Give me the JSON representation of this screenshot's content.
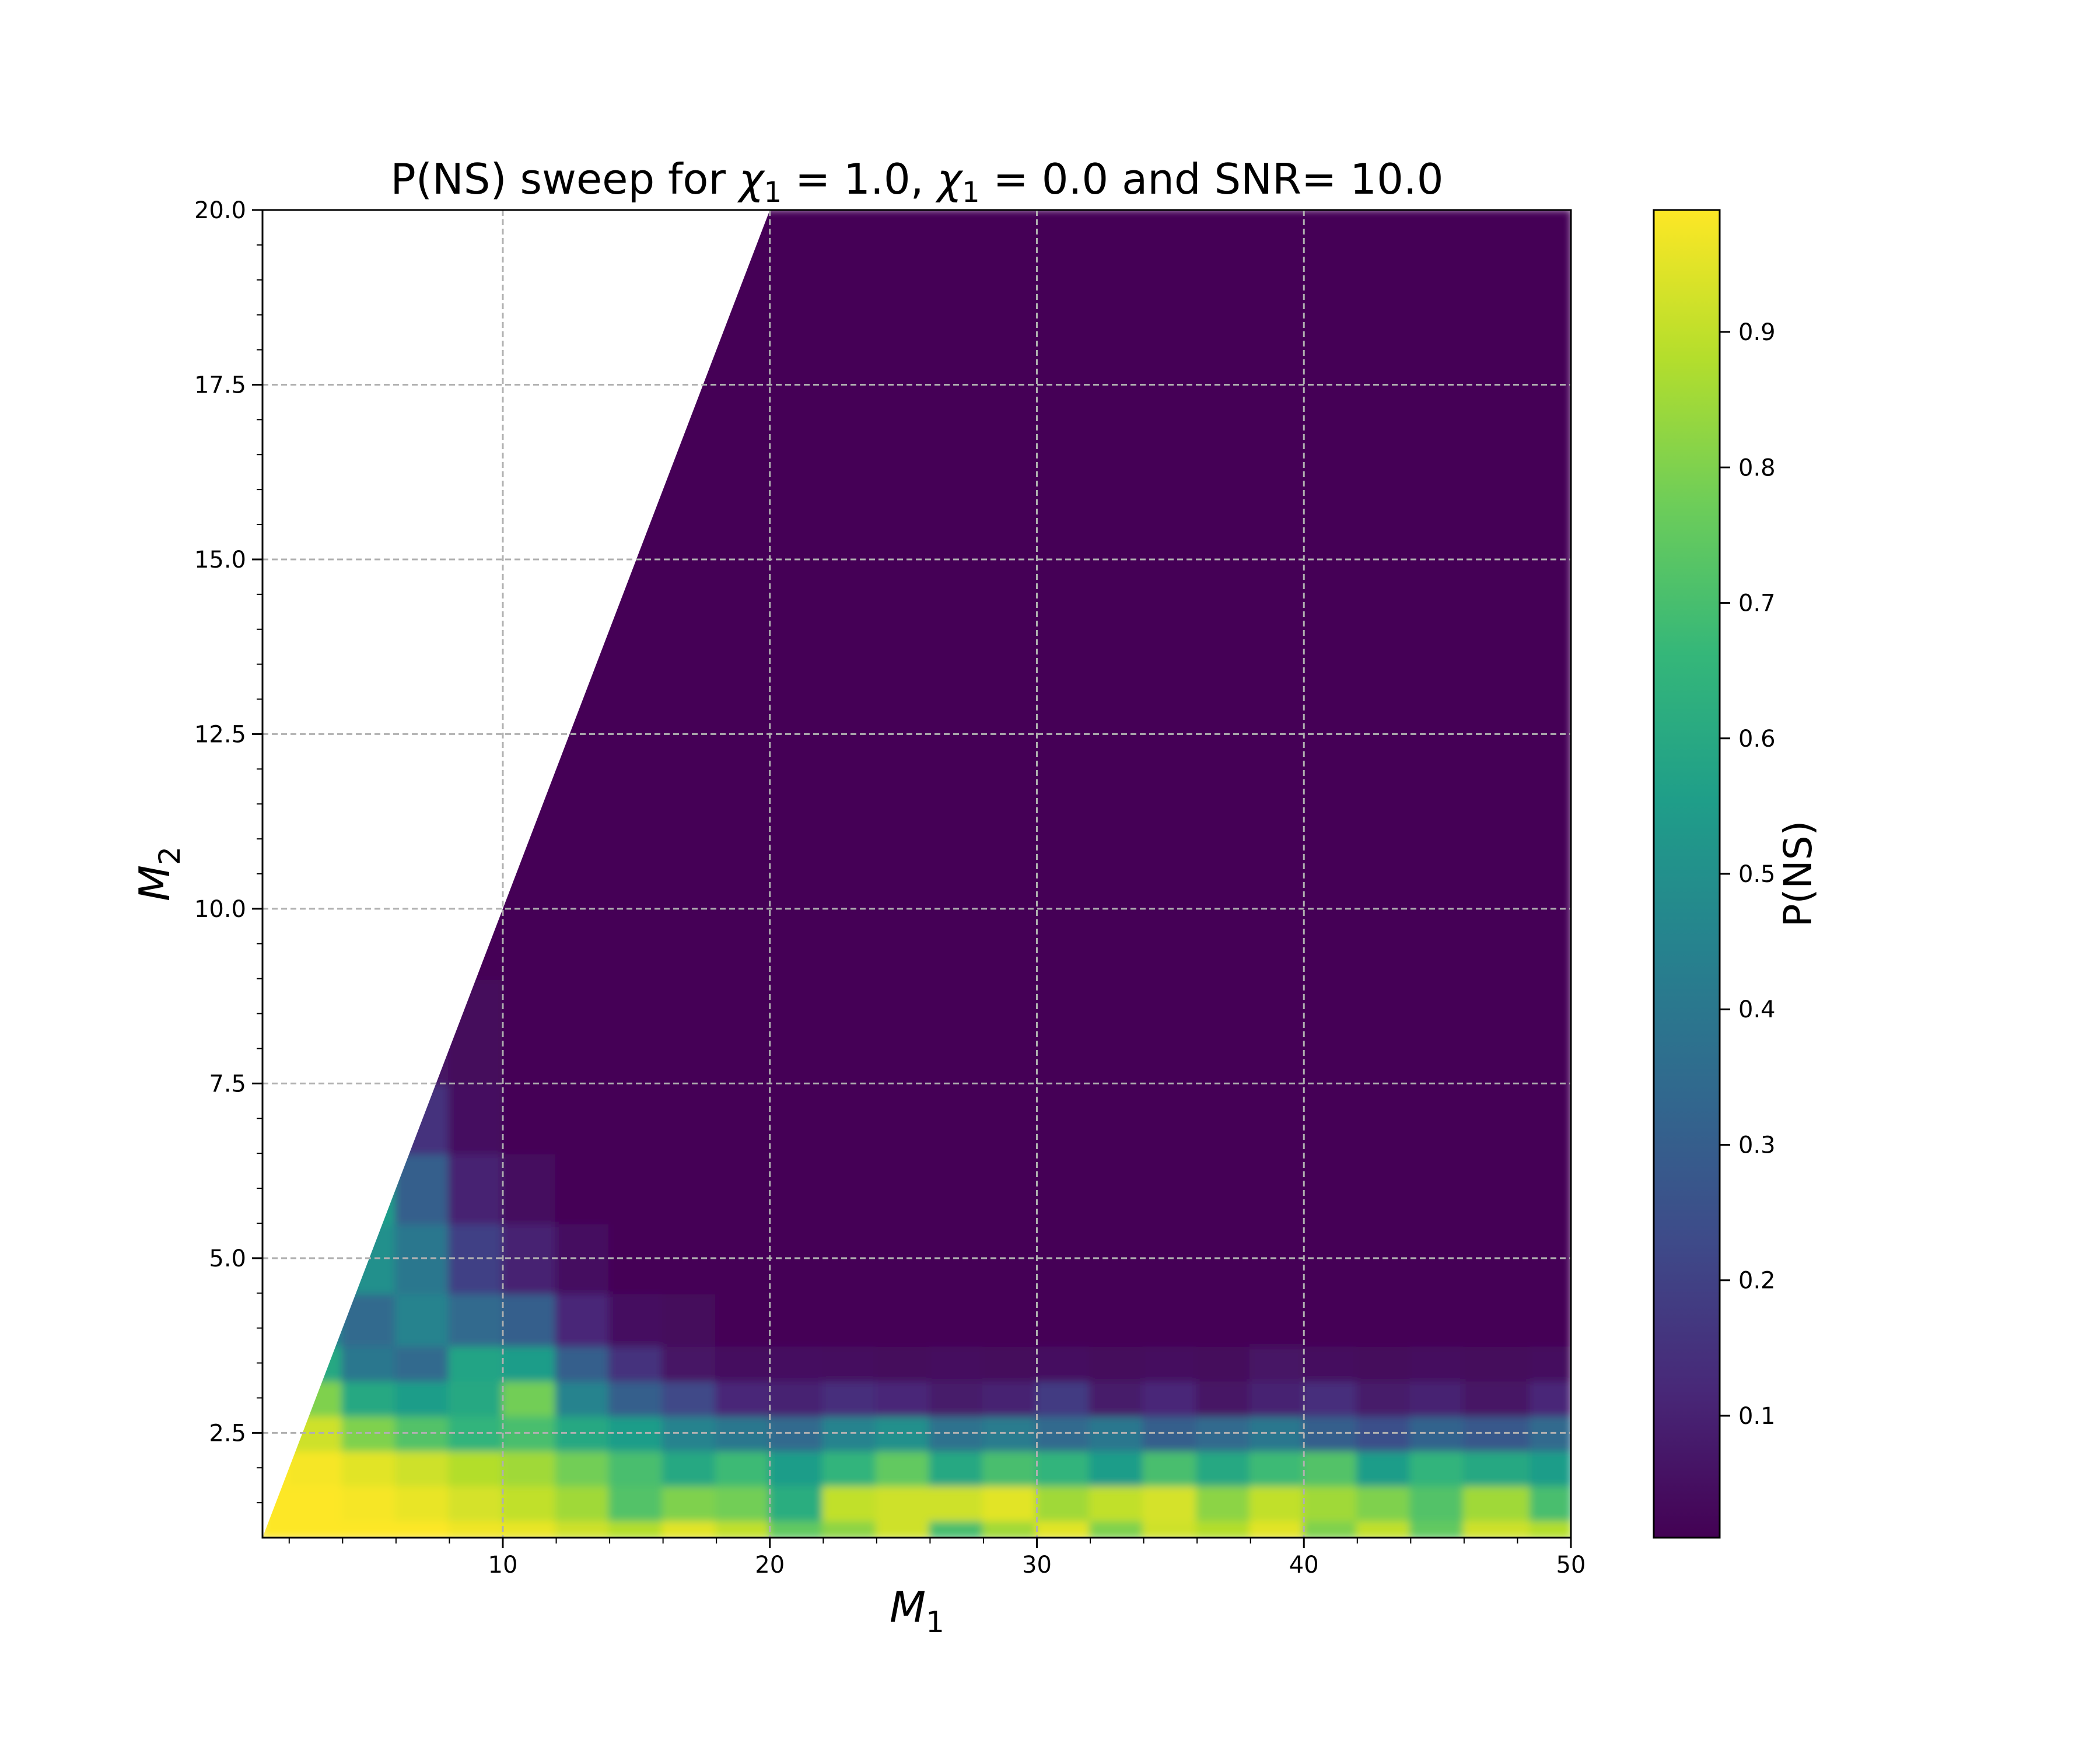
{
  "chart_data": {
    "type": "heatmap",
    "title": "P(NS) sweep for χ₁ = 1.0, χ₁ = 0.0 and SNR= 10.0",
    "title_parts": [
      "P(NS) sweep for ",
      "χ",
      "1",
      " = 1.0, ",
      "χ",
      "1",
      " = 0.0 and SNR= 10.0"
    ],
    "xlabel": "M",
    "xlabel_sub": "1",
    "ylabel": "M",
    "ylabel_sub": "2",
    "xlim": [
      1,
      50
    ],
    "ylim": [
      1,
      20
    ],
    "xticks": [
      10,
      20,
      30,
      40,
      50
    ],
    "xtick_labels": [
      "10",
      "20",
      "30",
      "40",
      "50"
    ],
    "yticks": [
      2.5,
      5.0,
      7.5,
      10.0,
      12.5,
      15.0,
      17.5,
      20.0
    ],
    "ytick_labels": [
      "2.5",
      "5.0",
      "7.5",
      "10.0",
      "12.5",
      "15.0",
      "17.5",
      "20.0"
    ],
    "grid": true,
    "colormap": "viridis",
    "colorbar": {
      "label": "P(NS)",
      "range": [
        0.01,
        0.99
      ],
      "ticks": [
        0.1,
        0.2,
        0.3,
        0.4,
        0.5,
        0.6,
        0.7,
        0.8,
        0.9
      ],
      "tick_labels": [
        "0.1",
        "0.2",
        "0.3",
        "0.4",
        "0.5",
        "0.6",
        "0.7",
        "0.8",
        "0.9"
      ]
    },
    "domain_constraint": "M2 <= M1",
    "m1_grid": [
      1,
      3,
      5,
      7,
      9,
      11,
      13,
      15,
      17,
      19,
      21,
      23,
      25,
      27,
      29,
      31,
      33,
      35,
      37,
      39,
      41,
      43,
      45,
      47,
      50
    ],
    "m2_grid": [
      1,
      1.5,
      2,
      2.5,
      3,
      3.5,
      4,
      5,
      6,
      7,
      8,
      10,
      12.5,
      15,
      17.5,
      20
    ],
    "pns_rows": [
      [
        0.99,
        0.99,
        0.99,
        0.99,
        0.97,
        0.96,
        0.92,
        0.88,
        0.95,
        0.9,
        0.75,
        0.82,
        0.92,
        0.7,
        0.85,
        0.95,
        0.8,
        0.92,
        0.88,
        0.95,
        0.8,
        0.9,
        0.75,
        0.92,
        0.88
      ],
      [
        0.99,
        0.99,
        0.98,
        0.96,
        0.93,
        0.9,
        0.85,
        0.72,
        0.8,
        0.78,
        0.62,
        0.9,
        0.92,
        0.92,
        0.95,
        0.85,
        0.9,
        0.93,
        0.82,
        0.9,
        0.85,
        0.8,
        0.72,
        0.85,
        0.7
      ],
      [
        0.99,
        0.98,
        0.95,
        0.92,
        0.88,
        0.85,
        0.78,
        0.7,
        0.6,
        0.68,
        0.55,
        0.65,
        0.75,
        0.6,
        0.7,
        0.65,
        0.55,
        0.7,
        0.6,
        0.68,
        0.72,
        0.55,
        0.65,
        0.6,
        0.55
      ],
      [
        0.98,
        0.92,
        0.8,
        0.72,
        0.65,
        0.7,
        0.6,
        0.55,
        0.45,
        0.4,
        0.35,
        0.45,
        0.5,
        0.38,
        0.42,
        0.35,
        0.4,
        0.3,
        0.35,
        0.4,
        0.3,
        0.25,
        0.32,
        0.28,
        0.35
      ],
      [
        0.92,
        0.8,
        0.6,
        0.55,
        0.6,
        0.78,
        0.45,
        0.3,
        0.22,
        0.12,
        0.1,
        0.14,
        0.12,
        0.08,
        0.1,
        0.18,
        0.08,
        0.12,
        0.06,
        0.1,
        0.14,
        0.08,
        0.1,
        0.06,
        0.12
      ],
      [
        0.8,
        0.6,
        0.4,
        0.35,
        0.58,
        0.55,
        0.3,
        0.15,
        0.06,
        0.04,
        0.05,
        0.04,
        0.03,
        0.04,
        0.03,
        0.05,
        0.03,
        0.04,
        0.03,
        0.06,
        0.04,
        0.03,
        0.04,
        0.03,
        0.04
      ],
      [
        0.6,
        0.45,
        0.35,
        0.45,
        0.35,
        0.3,
        0.12,
        0.05,
        0.03,
        0.02,
        0.02,
        0.02,
        0.02,
        0.02,
        0.02,
        0.02,
        0.02,
        0.02,
        0.02,
        0.02,
        0.02,
        0.02,
        0.02,
        0.02,
        0.02
      ],
      [
        0.45,
        0.45,
        0.5,
        0.4,
        0.2,
        0.1,
        0.05,
        0.02,
        0.02,
        0.02,
        0.02,
        0.02,
        0.02,
        0.02,
        0.02,
        0.02,
        0.02,
        0.02,
        0.02,
        0.02,
        0.02,
        0.02,
        0.02,
        0.02,
        0.02
      ],
      [
        0.4,
        0.45,
        0.55,
        0.3,
        0.1,
        0.04,
        0.02,
        0.02,
        0.02,
        0.02,
        0.02,
        0.02,
        0.02,
        0.02,
        0.02,
        0.02,
        0.02,
        0.02,
        0.02,
        0.02,
        0.02,
        0.02,
        0.02,
        0.02,
        0.02
      ],
      [
        0.3,
        0.35,
        0.3,
        0.15,
        0.05,
        0.02,
        0.02,
        0.02,
        0.02,
        0.02,
        0.02,
        0.02,
        0.02,
        0.02,
        0.02,
        0.02,
        0.02,
        0.02,
        0.02,
        0.02,
        0.02,
        0.02,
        0.02,
        0.02,
        0.02
      ],
      [
        0.2,
        0.2,
        0.12,
        0.06,
        0.03,
        0.02,
        0.02,
        0.02,
        0.02,
        0.02,
        0.02,
        0.02,
        0.02,
        0.02,
        0.02,
        0.02,
        0.02,
        0.02,
        0.02,
        0.02,
        0.02,
        0.02,
        0.02,
        0.02,
        0.02
      ],
      [
        0.02,
        0.02,
        0.02,
        0.02,
        0.02,
        0.02,
        0.02,
        0.02,
        0.02,
        0.02,
        0.02,
        0.02,
        0.02,
        0.02,
        0.02,
        0.02,
        0.02,
        0.02,
        0.02,
        0.02,
        0.02,
        0.02,
        0.02,
        0.02,
        0.02
      ],
      [
        0.02,
        0.02,
        0.02,
        0.02,
        0.02,
        0.02,
        0.02,
        0.02,
        0.02,
        0.02,
        0.02,
        0.02,
        0.02,
        0.02,
        0.02,
        0.02,
        0.02,
        0.02,
        0.02,
        0.02,
        0.02,
        0.02,
        0.02,
        0.02,
        0.02
      ],
      [
        0.02,
        0.02,
        0.02,
        0.02,
        0.02,
        0.02,
        0.02,
        0.02,
        0.02,
        0.02,
        0.02,
        0.02,
        0.02,
        0.02,
        0.02,
        0.02,
        0.02,
        0.02,
        0.02,
        0.02,
        0.02,
        0.02,
        0.02,
        0.02,
        0.02
      ],
      [
        0.02,
        0.02,
        0.02,
        0.02,
        0.02,
        0.02,
        0.02,
        0.02,
        0.02,
        0.02,
        0.02,
        0.02,
        0.02,
        0.02,
        0.02,
        0.02,
        0.02,
        0.02,
        0.02,
        0.02,
        0.02,
        0.02,
        0.02,
        0.02,
        0.02
      ],
      [
        0.02,
        0.02,
        0.02,
        0.02,
        0.02,
        0.02,
        0.02,
        0.02,
        0.02,
        0.02,
        0.02,
        0.02,
        0.02,
        0.02,
        0.02,
        0.02,
        0.02,
        0.02,
        0.02,
        0.02,
        0.02,
        0.02,
        0.02,
        0.02,
        0.02
      ]
    ]
  }
}
